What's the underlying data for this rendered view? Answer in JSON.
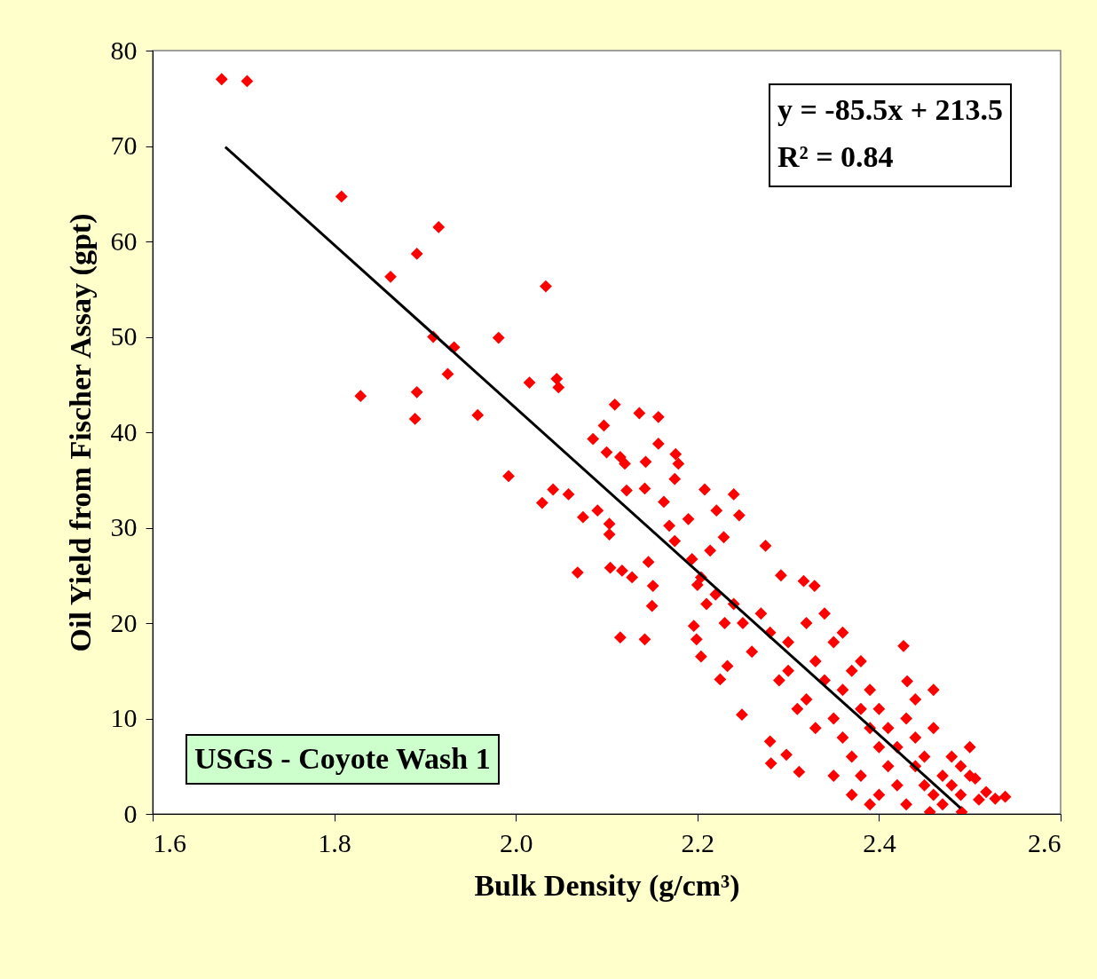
{
  "chart_data": {
    "type": "scatter",
    "xlabel": "Bulk Density (g/cm³)",
    "ylabel": "Oil Yield from Fischer Assay (gpt)",
    "xlim": [
      1.6,
      2.6
    ],
    "xticks": [
      1.6,
      1.8,
      {
        "value": 2.0,
        "label": "2.0"
      },
      2.2,
      2.4,
      2.6
    ],
    "ylim": [
      0,
      80
    ],
    "yticks": [
      0,
      10,
      20,
      30,
      40,
      50,
      60,
      70,
      80
    ],
    "grid": false,
    "marker": "diamond",
    "annotations": [
      "y = -85.5x + 213.5",
      "R² = 0.84",
      "USGS - Coyote Wash 1"
    ],
    "series": [
      {
        "color": "#ff0000",
        "x": [
          1.676,
          1.704,
          1.808,
          1.915,
          1.891,
          1.862,
          2.033,
          1.909,
          1.932,
          1.981,
          1.925,
          2.015,
          2.045,
          2.047,
          1.829,
          1.891,
          1.889,
          1.958,
          1.992,
          2.041,
          2.058,
          2.029,
          2.074,
          2.068,
          2.085,
          2.109,
          2.097,
          2.1,
          2.115,
          2.12,
          2.136,
          2.157,
          2.157,
          2.176,
          2.179,
          2.143,
          2.122,
          2.142,
          2.103,
          2.103,
          2.09,
          2.104,
          2.117,
          2.128,
          2.146,
          2.151,
          2.15,
          2.115,
          2.142,
          2.163,
          2.169,
          2.175,
          2.175,
          2.19,
          2.208,
          2.221,
          2.24,
          2.246,
          2.275,
          2.194,
          2.214,
          2.229,
          2.204,
          2.196,
          2.199,
          2.204,
          2.225,
          2.233,
          2.249,
          2.28,
          2.281,
          2.298,
          2.312,
          2.329,
          2.317,
          2.292,
          2.427,
          2.431,
          2.539,
          2.528,
          2.518,
          2.506,
          2.491,
          2.456,
          2.3,
          2.3,
          2.32,
          2.33,
          2.32,
          2.34,
          2.35,
          2.35,
          2.36,
          2.36,
          2.37,
          2.37,
          2.38,
          2.38,
          2.39,
          2.39,
          2.4,
          2.4,
          2.4,
          2.41,
          2.41,
          2.42,
          2.42,
          2.43,
          2.43,
          2.44,
          2.44,
          2.45,
          2.45,
          2.46,
          2.46,
          2.47,
          2.47,
          2.48,
          2.48,
          2.49,
          2.49,
          2.5,
          2.51,
          2.33,
          2.31,
          2.29,
          2.28,
          2.27,
          2.26,
          2.25,
          2.24,
          2.23,
          2.22,
          2.21,
          2.2,
          2.34,
          2.36,
          2.38,
          2.35,
          2.37,
          2.39,
          2.44,
          2.46,
          2.5
        ],
        "values": [
          77.0,
          76.8,
          64.7,
          61.5,
          58.7,
          56.3,
          55.3,
          50.0,
          48.9,
          49.9,
          46.1,
          45.2,
          45.6,
          44.7,
          43.8,
          44.2,
          41.4,
          41.8,
          35.4,
          34.0,
          33.5,
          32.6,
          31.1,
          25.3,
          39.3,
          42.9,
          40.7,
          37.9,
          37.4,
          36.7,
          42.0,
          41.6,
          38.8,
          37.7,
          36.7,
          36.9,
          33.9,
          34.1,
          30.4,
          29.3,
          31.8,
          25.8,
          25.5,
          24.8,
          26.4,
          23.9,
          21.8,
          18.5,
          18.3,
          32.7,
          30.2,
          35.1,
          28.6,
          30.9,
          34.0,
          31.8,
          33.5,
          31.3,
          28.1,
          26.7,
          27.6,
          29.0,
          24.8,
          19.7,
          18.3,
          16.5,
          14.1,
          15.5,
          10.4,
          7.6,
          5.3,
          6.2,
          4.4,
          23.9,
          24.4,
          25.0,
          17.6,
          13.9,
          1.8,
          1.6,
          2.3,
          3.7,
          0.2,
          0.2,
          18,
          15,
          20,
          16,
          12,
          14,
          18,
          10,
          13,
          8,
          15,
          6,
          11,
          4,
          9,
          13,
          7,
          2,
          11,
          5,
          9,
          3,
          7,
          10,
          1,
          5,
          8,
          3,
          6,
          2,
          9,
          4,
          1,
          6,
          3,
          2,
          5,
          4,
          1.5,
          9,
          11,
          14,
          19,
          21,
          17,
          20,
          22,
          20,
          23,
          22,
          24,
          21,
          19,
          16,
          4,
          2,
          1,
          12,
          13,
          7
        ]
      },
      {
        "type": "line",
        "color": "#000000",
        "marker": "none",
        "line_style": "solid",
        "x": [
          1.68,
          2.49
        ],
        "values": [
          69.9,
          0.6
        ]
      }
    ]
  }
}
